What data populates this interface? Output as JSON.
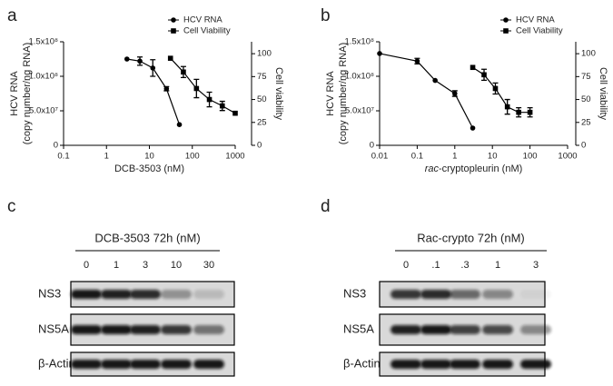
{
  "chart_data": [
    {
      "type": "line",
      "panel": "a",
      "xlog": true,
      "xlabel": "DCB-3503 (nM)",
      "ylabel": [
        "HCV RNA",
        "(copy number/ng RNA)"
      ],
      "y2label": "Cell viability",
      "xlim": [
        0.1,
        1000
      ],
      "xticks": [
        0.1,
        1,
        10,
        100,
        1000
      ],
      "ylim": [
        0,
        150000000
      ],
      "yticks": [
        0,
        {
          "value": 50000000,
          "label": "5.0x10⁷"
        },
        {
          "value": 100000000,
          "label": "1.0x10⁸"
        },
        {
          "value": 150000000,
          "label": "1.5x10⁸"
        }
      ],
      "y2lim": [
        0,
        113
      ],
      "y2ticks": [
        0,
        25,
        50,
        75,
        100
      ],
      "legend": "top-right",
      "series": [
        {
          "name": "HCV RNA",
          "marker": "circle",
          "color": "#000000",
          "x": [
            3,
            6,
            12,
            25,
            50
          ],
          "values": [
            125000000,
            122000000,
            112000000,
            82000000,
            30000000
          ],
          "errors": [
            null,
            6000000,
            12000000,
            3000000,
            null
          ]
        },
        {
          "name": "Cell Viability",
          "marker": "square",
          "color": "#000000",
          "axis": "y2",
          "x": [
            31,
            62,
            125,
            250,
            500,
            1000
          ],
          "values": [
            95,
            80,
            62,
            50,
            43,
            35
          ],
          "errors": [
            null,
            6,
            10,
            8,
            5,
            null
          ]
        }
      ]
    },
    {
      "type": "line",
      "panel": "b",
      "xlog": true,
      "xlabel_prefix": "rac",
      "xlabel": "-cryptopleurin (nM)",
      "ylabel": [
        "HCV RNA",
        "(copy number/ng RNA)"
      ],
      "y2label": "Cell viability",
      "xlim": [
        0.01,
        1000
      ],
      "xticks": [
        0.01,
        0.1,
        1,
        10,
        100,
        1000
      ],
      "ylim": [
        0,
        150000000
      ],
      "yticks": [
        0,
        {
          "value": 50000000,
          "label": "5.0x10⁷"
        },
        {
          "value": 100000000,
          "label": "1.0x10⁸"
        },
        {
          "value": 150000000,
          "label": "1.5x10⁸"
        }
      ],
      "y2lim": [
        0,
        113
      ],
      "y2ticks": [
        0,
        25,
        50,
        75,
        100
      ],
      "legend": "top-right",
      "series": [
        {
          "name": "HCV RNA",
          "marker": "circle",
          "color": "#000000",
          "x": [
            0.01,
            0.1,
            0.3,
            1,
            3
          ],
          "values": [
            133000000,
            122000000,
            94000000,
            75000000,
            25000000
          ],
          "errors": [
            null,
            4000000,
            null,
            4000000,
            null
          ]
        },
        {
          "name": "Cell Viability",
          "marker": "square",
          "color": "#000000",
          "axis": "y2",
          "x": [
            3,
            6,
            12,
            25,
            50,
            100
          ],
          "values": [
            85,
            77,
            62,
            42,
            36,
            36
          ],
          "errors": [
            null,
            6,
            6,
            8,
            5,
            5
          ]
        }
      ]
    }
  ],
  "blots": [
    {
      "panel": "c",
      "title": "DCB-3503 72h (nM)",
      "lanes": [
        "0",
        "1",
        "3",
        "10",
        "30"
      ],
      "rows": [
        "NS3",
        "NS5A",
        "β-Actin"
      ]
    },
    {
      "panel": "d",
      "title": "Rac-crypto 72h (nM)",
      "lanes": [
        "0",
        ".1",
        ".3",
        "1",
        "3"
      ],
      "rows": [
        "NS3",
        "NS5A",
        "β-Actin"
      ]
    }
  ]
}
